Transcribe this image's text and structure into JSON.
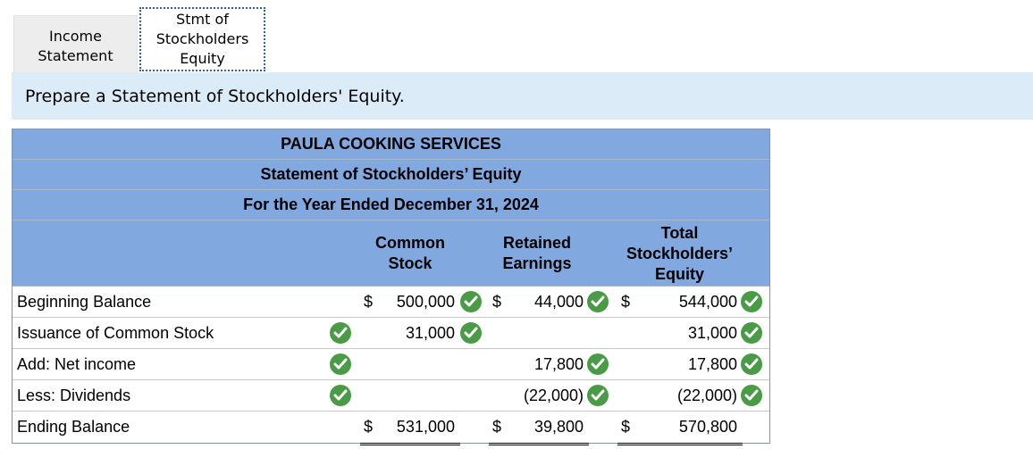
{
  "tabs": [
    {
      "label": "Income\nStatement",
      "active": false
    },
    {
      "label": "Stmt of\nStockholders\nEquity",
      "active": true
    }
  ],
  "instruction": "Prepare a Statement of Stockholders' Equity.",
  "statement": {
    "company": "PAULA COOKING SERVICES",
    "title": "Statement of Stockholders’ Equity",
    "period": "For the Year Ended December 31, 2024",
    "columns": [
      "Common\nStock",
      "Retained\nEarnings",
      "Total\nStockholders’\nEquity"
    ],
    "rows": [
      {
        "label": "Beginning Balance",
        "label_check": false,
        "common": "500,000",
        "retained": "44,000",
        "total": "544,000",
        "dollar": true,
        "checks": [
          true,
          true,
          true
        ]
      },
      {
        "label": "Issuance of Common Stock",
        "label_check": true,
        "common": "31,000",
        "retained": "",
        "total": "31,000",
        "dollar": false,
        "checks": [
          true,
          false,
          true
        ]
      },
      {
        "label": "Add: Net income",
        "label_check": true,
        "common": "",
        "retained": "17,800",
        "total": "17,800",
        "dollar": false,
        "checks": [
          false,
          true,
          true
        ]
      },
      {
        "label": "Less: Dividends",
        "label_check": true,
        "common": "",
        "retained": "(22,000)",
        "total": "(22,000)",
        "dollar": false,
        "checks": [
          false,
          true,
          true
        ]
      },
      {
        "label": "Ending Balance",
        "label_check": false,
        "common": "531,000",
        "retained": "39,800",
        "total": "570,800",
        "dollar": true,
        "checks": [
          false,
          false,
          false
        ]
      }
    ],
    "currency_symbol": "$"
  },
  "colors": {
    "header_bg": "#82a8e0",
    "prompt_bg": "#dbecf8",
    "check": "#4a9b45",
    "active_tab_border": "#2d5fa7"
  }
}
